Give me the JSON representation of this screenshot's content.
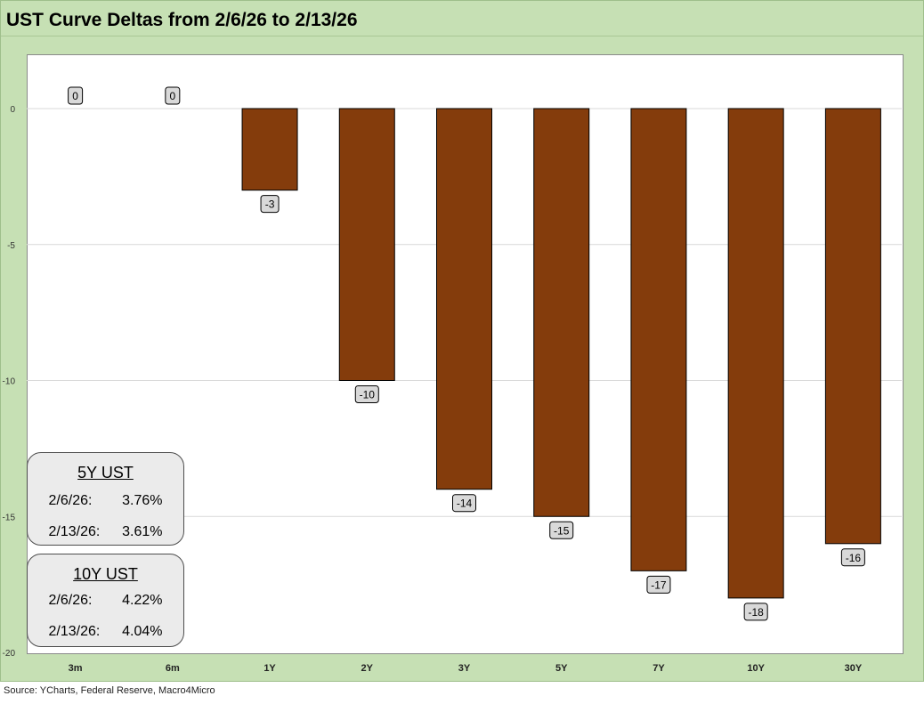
{
  "title": "UST Curve Deltas from 2/6/26 to 2/13/26",
  "source": "Source: YCharts, Federal Reserve, Macro4Micro",
  "colors": {
    "frame": "#c6e0b4",
    "bar": "#843c0c",
    "bar_outline": "#000000",
    "label_box": "#d9d9d9",
    "gridline": "#d9d9d9",
    "info_box": "#ebebeb"
  },
  "chart_data": {
    "type": "bar",
    "title": "UST Curve Deltas from 2/6/26 to 2/13/26",
    "xlabel": "",
    "ylabel": "",
    "categories": [
      "3m",
      "6m",
      "1Y",
      "2Y",
      "3Y",
      "5Y",
      "7Y",
      "10Y",
      "30Y"
    ],
    "values": [
      0,
      0,
      -3,
      -10,
      -14,
      -15,
      -17,
      -18,
      -16
    ],
    "data_labels": [
      "0",
      "0",
      "-3",
      "-10",
      "-14",
      "-15",
      "-17",
      "-18",
      "-16"
    ],
    "ylim": [
      -20,
      2
    ],
    "yticks": [
      0,
      -5,
      -10,
      -15,
      -20
    ],
    "ytick_labels": [
      "0",
      "-5",
      "-10",
      "-15",
      "-20"
    ],
    "grid": true
  },
  "info_boxes": [
    {
      "title": "5Y UST",
      "rows": [
        {
          "date": "2/6/26:",
          "value": "3.76%"
        },
        {
          "date": "2/13/26:",
          "value": "3.61%"
        }
      ]
    },
    {
      "title": "10Y UST",
      "rows": [
        {
          "date": "2/6/26:",
          "value": "4.22%"
        },
        {
          "date": "2/13/26:",
          "value": "4.04%"
        }
      ]
    }
  ]
}
